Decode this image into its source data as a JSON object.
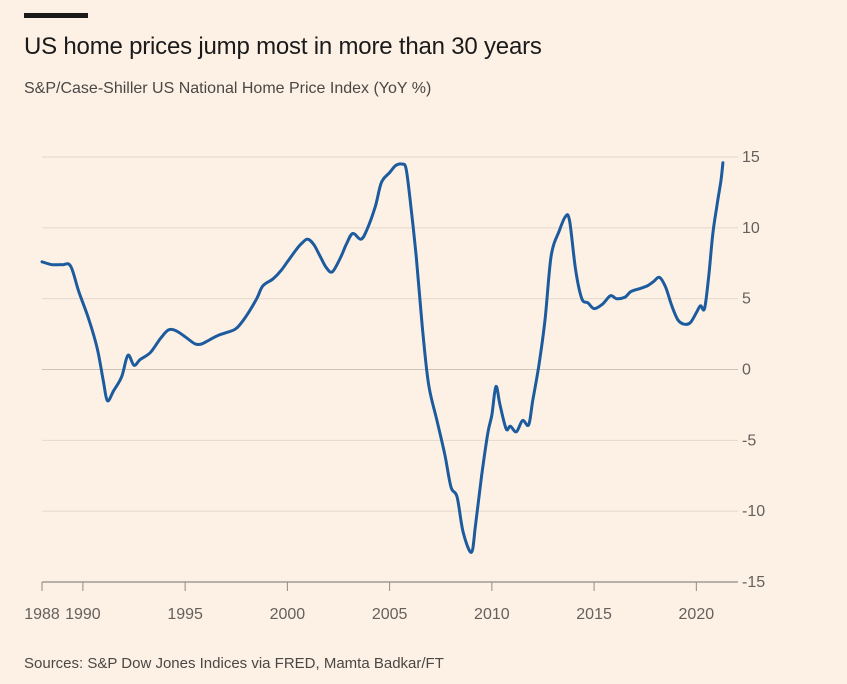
{
  "title": "US home prices jump most in more than 30 years",
  "subtitle": "S&P/Case-Shiller US National Home Price Index (YoY %)",
  "source": "Sources: S&P Dow Jones Indices via FRED, Mamta Badkar/FT",
  "colors": {
    "background": "#fdf1e6",
    "line": "#1c5b9e",
    "grid": "#e4d8cc",
    "zero_line": "#cfc3b7",
    "accent_bar": "#1a1a1a"
  },
  "chart_data": {
    "type": "line",
    "title": "US home prices jump most in more than 30 years",
    "subtitle": "S&P/Case-Shiller US National Home Price Index (YoY %)",
    "xlabel": "",
    "ylabel": "",
    "xlim": [
      1988,
      2021.5
    ],
    "ylim": [
      -15,
      15
    ],
    "x_ticks": [
      1988,
      1990,
      1995,
      2000,
      2005,
      2010,
      2015,
      2020
    ],
    "x_tick_labels": [
      "1988",
      "1990",
      "1995",
      "2000",
      "2005",
      "2010",
      "2015",
      "2020"
    ],
    "y_ticks": [
      15,
      10,
      5,
      0,
      -5,
      -10,
      -15
    ],
    "y_tick_labels": [
      "15",
      "10",
      "5",
      "0",
      "-5",
      "-10",
      "-15"
    ],
    "y_axis_side": "right",
    "grid": true,
    "legend": "none",
    "series": [
      {
        "x": [
          1988.0,
          1988.5,
          1989.0,
          1989.4,
          1989.8,
          1990.3,
          1990.7,
          1991.0,
          1991.2,
          1991.5,
          1991.9,
          1992.2,
          1992.5,
          1992.8,
          1993.3,
          1993.8,
          1994.2,
          1994.6,
          1995.1,
          1995.5,
          1995.8,
          1996.2,
          1996.6,
          1997.0,
          1997.5,
          1998.0,
          1998.5,
          1998.8,
          1999.3,
          1999.7,
          2000.0,
          2000.4,
          2000.7,
          2001.0,
          2001.3,
          2001.6,
          2001.9,
          2002.2,
          2002.6,
          2002.9,
          2003.2,
          2003.6,
          2003.9,
          2004.3,
          2004.6,
          2005.0,
          2005.3,
          2005.6,
          2005.8,
          2006.0,
          2006.3,
          2006.6,
          2006.9,
          2007.3,
          2007.7,
          2008.0,
          2008.3,
          2008.6,
          2009.0,
          2009.2,
          2009.5,
          2009.8,
          2010.0,
          2010.2,
          2010.4,
          2010.7,
          2010.9,
          2011.2,
          2011.5,
          2011.8,
          2012.0,
          2012.3,
          2012.6,
          2012.9,
          2013.3,
          2013.6,
          2013.8,
          2014.1,
          2014.4,
          2014.7,
          2015.0,
          2015.4,
          2015.8,
          2016.1,
          2016.5,
          2016.8,
          2017.2,
          2017.6,
          2017.9,
          2018.2,
          2018.5,
          2018.8,
          2019.1,
          2019.4,
          2019.7,
          2020.0,
          2020.2,
          2020.4,
          2020.6,
          2020.8,
          2021.0,
          2021.2,
          2021.3
        ],
        "y": [
          7.6,
          7.4,
          7.4,
          7.3,
          5.5,
          3.5,
          1.5,
          -0.8,
          -2.2,
          -1.5,
          -0.5,
          1.0,
          0.3,
          0.7,
          1.2,
          2.2,
          2.8,
          2.7,
          2.2,
          1.8,
          1.8,
          2.1,
          2.4,
          2.6,
          2.9,
          3.8,
          5.0,
          5.9,
          6.4,
          7.0,
          7.6,
          8.4,
          8.9,
          9.2,
          8.8,
          8.0,
          7.2,
          6.9,
          7.9,
          8.9,
          9.6,
          9.2,
          9.9,
          11.5,
          13.2,
          13.9,
          14.4,
          14.5,
          14.2,
          12.0,
          8.0,
          3.0,
          -1.0,
          -3.5,
          -6.0,
          -8.3,
          -9.0,
          -11.5,
          -12.9,
          -11.0,
          -7.5,
          -4.5,
          -3.2,
          -1.2,
          -2.5,
          -4.2,
          -4.0,
          -4.4,
          -3.6,
          -3.9,
          -2.2,
          0.3,
          3.5,
          8.0,
          9.8,
          10.8,
          10.5,
          7.0,
          5.0,
          4.7,
          4.3,
          4.6,
          5.2,
          5.0,
          5.1,
          5.5,
          5.7,
          5.9,
          6.2,
          6.5,
          5.8,
          4.5,
          3.5,
          3.2,
          3.3,
          4.0,
          4.5,
          4.3,
          6.5,
          9.5,
          11.5,
          13.3,
          14.6
        ]
      }
    ]
  }
}
